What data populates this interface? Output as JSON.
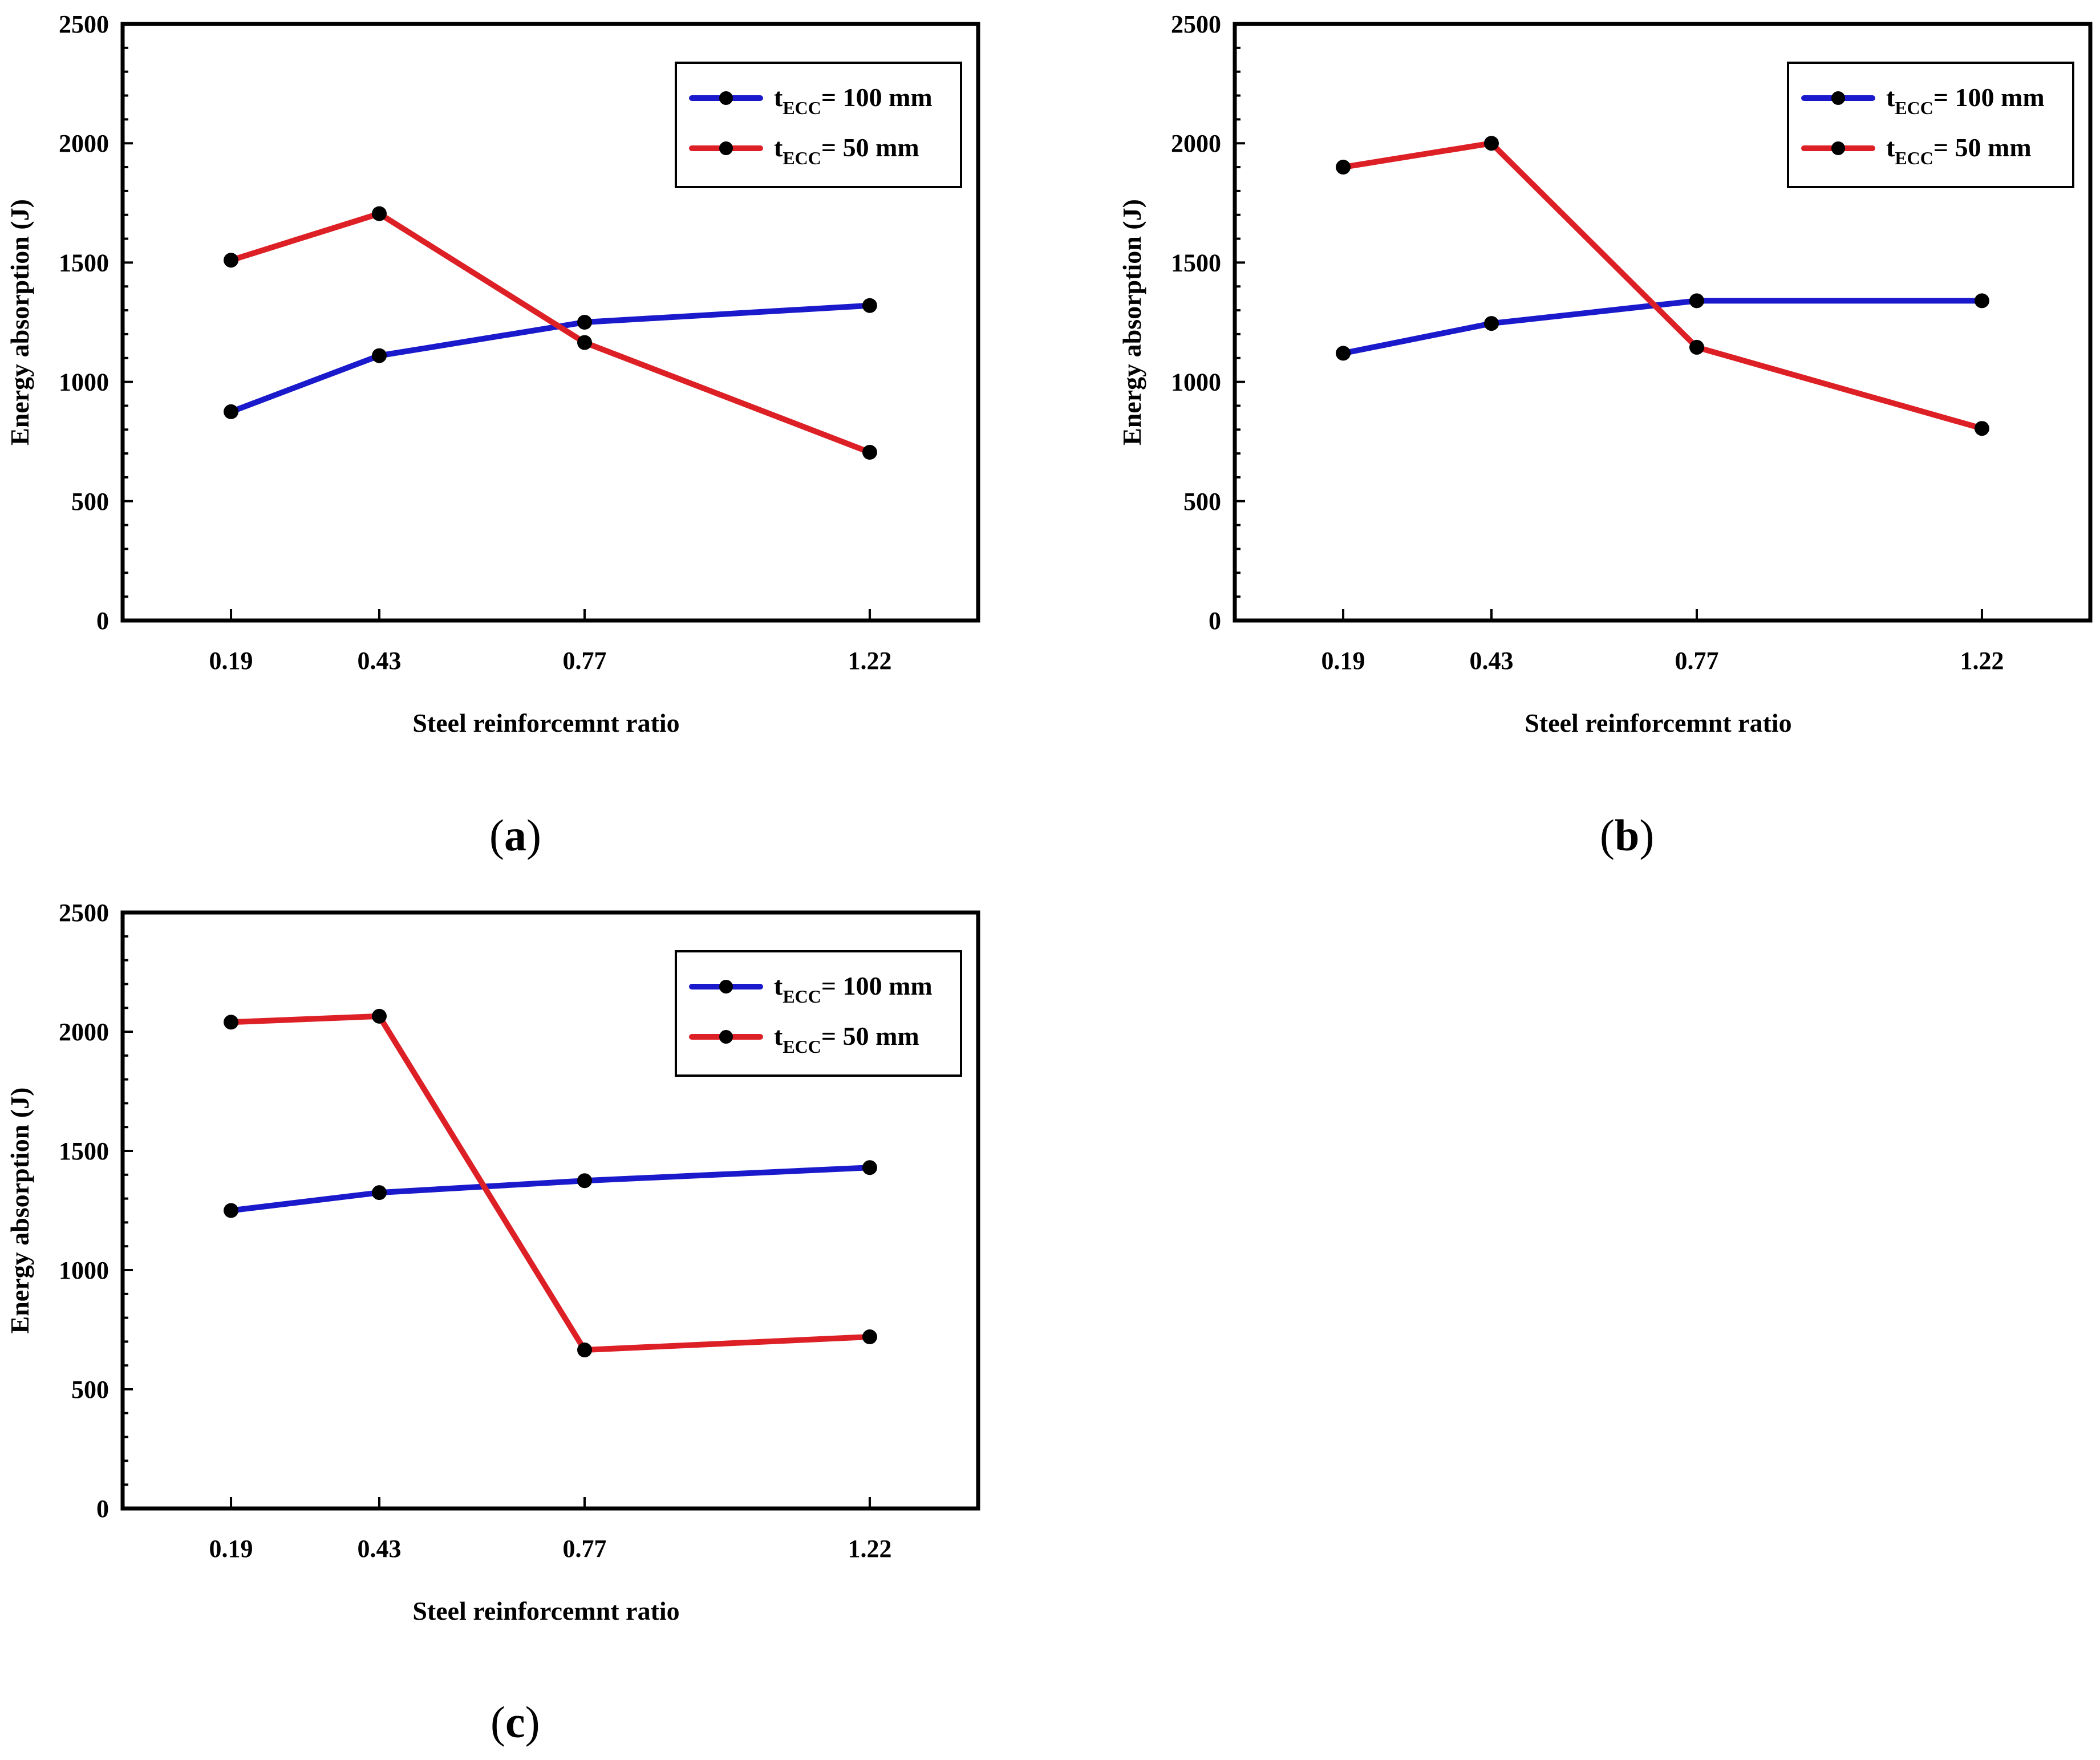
{
  "chart_data": [
    {
      "type": "line",
      "panel_label": "a",
      "categories": [
        "0.19",
        "0.43",
        "0.77",
        "1.22"
      ],
      "xlabel": "Steel reinforcemnt ratio",
      "ylabel": "Energy absorption (J)",
      "ylim": [
        0,
        2500
      ],
      "yticks": [
        "0",
        "500",
        "1000",
        "1500",
        "2000",
        "2500"
      ],
      "legend_position": "top-right",
      "series": [
        {
          "name": "t",
          "sub": "ECC",
          "rest": "= 100 mm",
          "color": "#1a1acc",
          "values": [
            875,
            1110,
            1250,
            1320
          ]
        },
        {
          "name": "t",
          "sub": "ECC",
          "rest": "= 50 mm",
          "color": "#dd1f26",
          "values": [
            1510,
            1705,
            1165,
            705
          ]
        }
      ]
    },
    {
      "type": "line",
      "panel_label": "b",
      "categories": [
        "0.19",
        "0.43",
        "0.77",
        "1.22"
      ],
      "xlabel": "Steel reinforcemnt ratio",
      "ylabel": "Energy absorption (J)",
      "ylim": [
        0,
        2500
      ],
      "yticks": [
        "0",
        "500",
        "1000",
        "1500",
        "2000",
        "2500"
      ],
      "legend_position": "top-right",
      "series": [
        {
          "name": "t",
          "sub": "ECC",
          "rest": "= 100 mm",
          "color": "#1a1acc",
          "values": [
            1120,
            1245,
            1340,
            1340
          ]
        },
        {
          "name": "t",
          "sub": "ECC",
          "rest": "= 50 mm",
          "color": "#dd1f26",
          "values": [
            1900,
            2000,
            1145,
            805
          ]
        }
      ]
    },
    {
      "type": "line",
      "panel_label": "c",
      "categories": [
        "0.19",
        "0.43",
        "0.77",
        "1.22"
      ],
      "xlabel": "Steel reinforcemnt ratio",
      "ylabel": "Energy absorption (J)",
      "ylim": [
        0,
        2500
      ],
      "yticks": [
        "0",
        "500",
        "1000",
        "1500",
        "2000",
        "2500"
      ],
      "legend_position": "top-right",
      "series": [
        {
          "name": "t",
          "sub": "ECC",
          "rest": "= 100 mm",
          "color": "#1a1acc",
          "values": [
            1250,
            1325,
            1375,
            1430
          ]
        },
        {
          "name": "t",
          "sub": "ECC",
          "rest": "= 50 mm",
          "color": "#dd1f26",
          "values": [
            2040,
            2065,
            665,
            720
          ]
        }
      ]
    }
  ]
}
